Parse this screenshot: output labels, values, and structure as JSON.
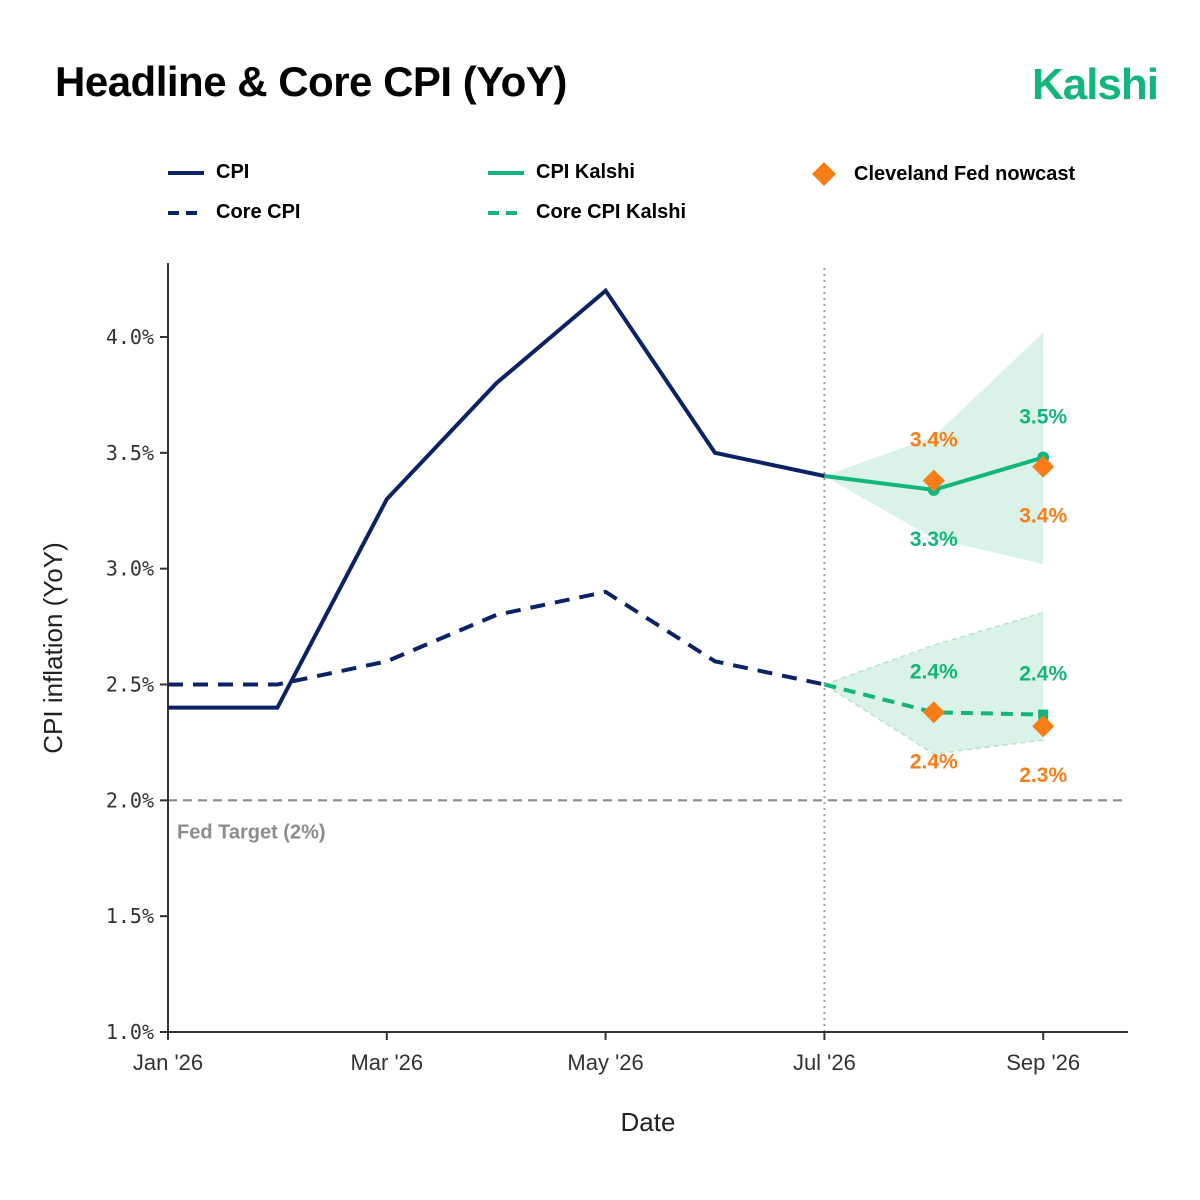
{
  "header": {
    "title": "Headline & Core CPI (YoY)",
    "brand": "Kalshi"
  },
  "colors": {
    "navy": "#0b2266",
    "green": "#12b57a",
    "green_band": "#d3f0e3",
    "orange": "#f97d16",
    "grey": "#8c8c8c",
    "axis": "#333333"
  },
  "legend": {
    "items": [
      {
        "label": "CPI",
        "style": "solid-line",
        "color": "#0b2266"
      },
      {
        "label": "Core CPI",
        "style": "dashed-line",
        "color": "#0b2266"
      },
      {
        "label": "CPI Kalshi",
        "style": "solid-line",
        "color": "#12b57a"
      },
      {
        "label": "Core CPI Kalshi",
        "style": "dashed-line",
        "color": "#12b57a"
      },
      {
        "label": "Cleveland Fed nowcast",
        "style": "diamond-marker",
        "color": "#f97d16"
      }
    ],
    "placement": "top"
  },
  "chart_data": {
    "type": "line",
    "xlabel": "Date",
    "ylabel": "CPI inflation (YoY)",
    "x_ticks": [
      "Jan '26",
      "Mar '26",
      "May '26",
      "Jul '26",
      "Sep '26"
    ],
    "x": [
      "2026-01",
      "2026-02",
      "2026-03",
      "2026-04",
      "2026-05",
      "2026-06",
      "2026-07",
      "2026-08",
      "2026-09"
    ],
    "xlim": [
      "2026-01",
      "2026-09-28"
    ],
    "ylim": [
      1.0,
      4.3
    ],
    "y_ticks": [
      "1.0%",
      "1.5%",
      "2.0%",
      "2.5%",
      "3.0%",
      "3.5%",
      "4.0%"
    ],
    "y_tick_values": [
      1.0,
      1.5,
      2.0,
      2.5,
      3.0,
      3.5,
      4.0
    ],
    "grid": false,
    "series": [
      {
        "name": "CPI",
        "x": [
          "2026-01",
          "2026-02",
          "2026-03",
          "2026-04",
          "2026-05",
          "2026-06",
          "2026-07"
        ],
        "values": [
          2.4,
          2.4,
          3.3,
          3.8,
          4.2,
          3.5,
          3.4
        ]
      },
      {
        "name": "Core CPI",
        "x": [
          "2026-01",
          "2026-02",
          "2026-03",
          "2026-04",
          "2026-05",
          "2026-06",
          "2026-07"
        ],
        "values": [
          2.5,
          2.5,
          2.6,
          2.8,
          2.9,
          2.6,
          2.5
        ]
      },
      {
        "name": "CPI Kalshi",
        "x": [
          "2026-07",
          "2026-08",
          "2026-09"
        ],
        "values": [
          3.4,
          3.34,
          3.48
        ],
        "band_low": [
          3.4,
          3.13,
          3.02
        ],
        "band_high": [
          3.4,
          3.57,
          4.02
        ]
      },
      {
        "name": "Core CPI Kalshi",
        "x": [
          "2026-07",
          "2026-08",
          "2026-09"
        ],
        "values": [
          2.5,
          2.38,
          2.37
        ],
        "band_low": [
          2.5,
          2.2,
          2.26
        ],
        "band_high": [
          2.5,
          2.67,
          2.81
        ]
      },
      {
        "name": "Cleveland Fed nowcast",
        "x": [
          "2026-08",
          "2026-09",
          "2026-08",
          "2026-09"
        ],
        "values": [
          3.38,
          3.44,
          2.38,
          2.32
        ]
      }
    ],
    "reference_lines": [
      {
        "kind": "horizontal",
        "value": 2.0,
        "label": "Fed Target (2%)"
      },
      {
        "kind": "vertical",
        "x": "2026-07"
      }
    ],
    "annotations": [
      {
        "text": "3.4%",
        "color": "orange",
        "x": "2026-08",
        "y": 3.38,
        "pos": "above"
      },
      {
        "text": "3.3%",
        "color": "green",
        "x": "2026-08",
        "y": 3.34,
        "pos": "below"
      },
      {
        "text": "3.5%",
        "color": "green",
        "x": "2026-09",
        "y": 3.48,
        "pos": "above"
      },
      {
        "text": "3.4%",
        "color": "orange",
        "x": "2026-09",
        "y": 3.44,
        "pos": "below"
      },
      {
        "text": "2.4%",
        "color": "green",
        "x": "2026-08",
        "y": 2.38,
        "pos": "above"
      },
      {
        "text": "2.4%",
        "color": "orange",
        "x": "2026-08",
        "y": 2.38,
        "pos": "below"
      },
      {
        "text": "2.4%",
        "color": "green",
        "x": "2026-09",
        "y": 2.37,
        "pos": "above"
      },
      {
        "text": "2.3%",
        "color": "orange",
        "x": "2026-09",
        "y": 2.32,
        "pos": "below"
      }
    ]
  }
}
